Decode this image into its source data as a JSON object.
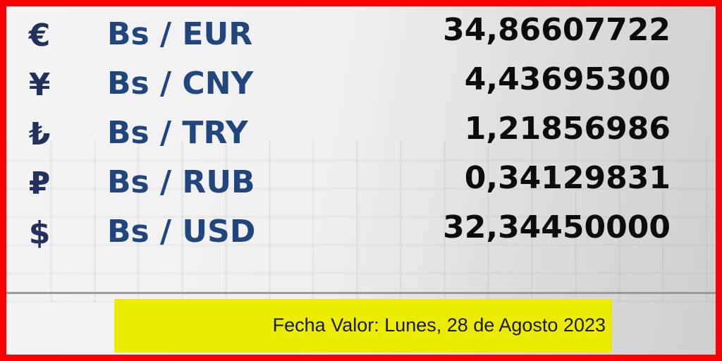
{
  "rates": [
    {
      "symbol": "€",
      "pair": "Bs / EUR",
      "value": "34,86607722"
    },
    {
      "symbol": "¥",
      "pair": "Bs / CNY",
      "value": "4,43695300"
    },
    {
      "symbol": "₺",
      "pair": "Bs / TRY",
      "value": "1,21856986"
    },
    {
      "symbol": "₽",
      "pair": "Bs / RUB",
      "value": "0,34129831"
    },
    {
      "symbol": "$",
      "pair": "Bs / USD",
      "value": "32,34450000"
    }
  ],
  "date_label": "Fecha Valor: Lunes, 28 de Agosto 2023",
  "colors": {
    "border": "#ff0000",
    "pair_text": "#21467e",
    "date_bg": "#ecec00"
  }
}
